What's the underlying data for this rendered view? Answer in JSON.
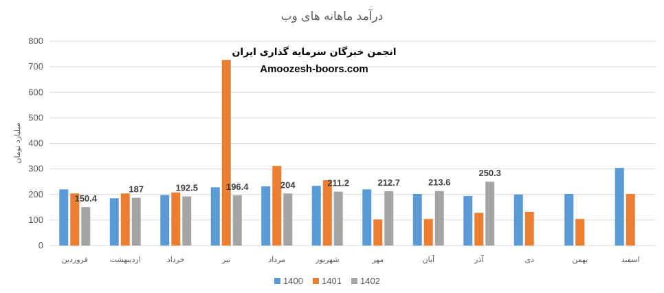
{
  "chart_data": {
    "type": "bar",
    "title": "درآمد ماهانه های وب",
    "ylabel": "میلیارد تومان",
    "xlabel": "",
    "ylim": [
      0,
      800
    ],
    "yticks": [
      0,
      100,
      200,
      300,
      400,
      500,
      600,
      700,
      800
    ],
    "grid": true,
    "legend_position": "bottom",
    "categories": [
      "فروردین",
      "اردیبهشت",
      "خرداد",
      "تیر",
      "مرداد",
      "شهریور",
      "مهر",
      "آبان",
      "آذر",
      "دی",
      "بهمن",
      "اسفند"
    ],
    "series": [
      {
        "name": "1400",
        "color": "#5b9bd5",
        "values": [
          220,
          185,
          198,
          228,
          232,
          234,
          220,
          202,
          194,
          200,
          202,
          304
        ]
      },
      {
        "name": "1401",
        "color": "#ed7d31",
        "values": [
          204,
          204,
          208,
          727,
          312,
          256,
          102,
          104,
          128,
          132,
          104,
          202
        ]
      },
      {
        "name": "1402",
        "color": "#a5a5a5",
        "values": [
          150.4,
          187,
          192.5,
          196.4,
          204,
          211.2,
          212.7,
          213.6,
          250.3,
          null,
          null,
          null
        ]
      }
    ],
    "data_labels": {
      "series": "1402",
      "values": [
        "150.4",
        "187",
        "192.5",
        "196.4",
        "204",
        "211.2",
        "212.7",
        "213.6",
        "250.3"
      ]
    },
    "watermark": {
      "line1": "انجمن خبرگان سرمایه گذاری ایران",
      "line2": "Amoozesh-boors.com"
    }
  }
}
